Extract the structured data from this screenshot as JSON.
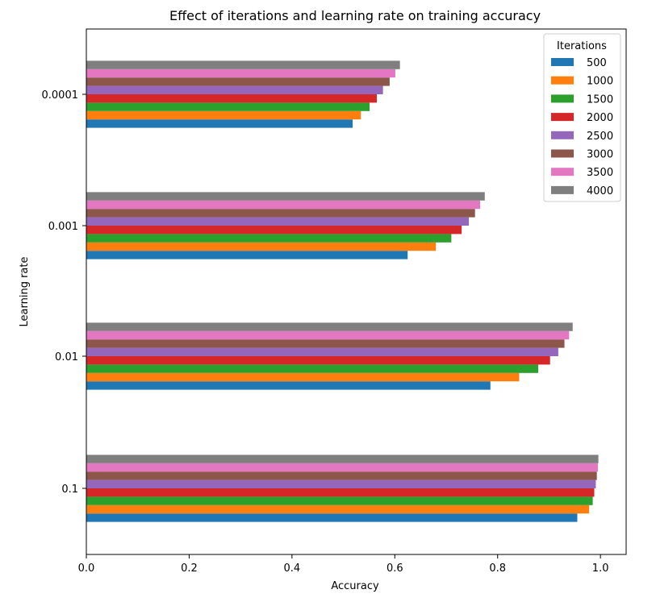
{
  "chart_data": {
    "type": "bar",
    "orientation": "horizontal",
    "title": "Effect of iterations and learning rate on training accuracy",
    "xlabel": "Accuracy",
    "ylabel": "Learning rate",
    "xlim": [
      0,
      1.05
    ],
    "xticks": [
      "0.0",
      "0.2",
      "0.4",
      "0.6",
      "0.8",
      "1.0"
    ],
    "xtick_values": [
      0.0,
      0.2,
      0.4,
      0.6,
      0.8,
      1.0
    ],
    "categories": [
      "0.1",
      "0.01",
      "0.001",
      "0.0001"
    ],
    "grid": false,
    "legend": {
      "title": "Iterations",
      "placement": "top-right"
    },
    "series": [
      {
        "name": "500",
        "color": "#1f77b4",
        "values": [
          0.955,
          0.786,
          0.625,
          0.518
        ]
      },
      {
        "name": "1000",
        "color": "#ff7f0e",
        "values": [
          0.978,
          0.842,
          0.68,
          0.534
        ]
      },
      {
        "name": "1500",
        "color": "#2ca02c",
        "values": [
          0.985,
          0.879,
          0.71,
          0.551
        ]
      },
      {
        "name": "2000",
        "color": "#d62728",
        "values": [
          0.988,
          0.902,
          0.73,
          0.565
        ]
      },
      {
        "name": "2500",
        "color": "#9467bd",
        "values": [
          0.991,
          0.918,
          0.744,
          0.577
        ]
      },
      {
        "name": "3000",
        "color": "#8c564b",
        "values": [
          0.993,
          0.93,
          0.756,
          0.59
        ]
      },
      {
        "name": "3500",
        "color": "#e377c2",
        "values": [
          0.995,
          0.939,
          0.766,
          0.601
        ]
      },
      {
        "name": "4000",
        "color": "#7f7f7f",
        "values": [
          0.996,
          0.946,
          0.775,
          0.61
        ]
      }
    ]
  }
}
